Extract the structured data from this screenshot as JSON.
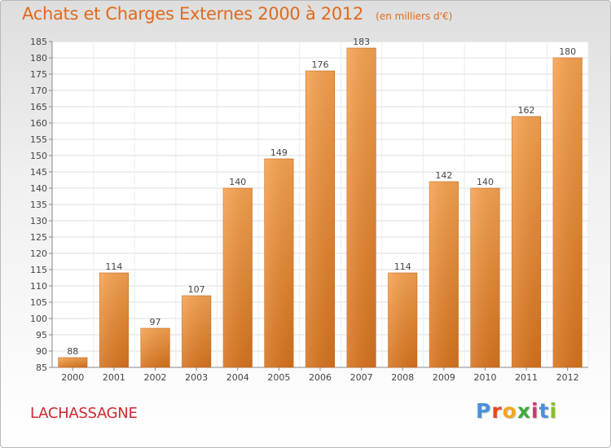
{
  "title": "Achats et Charges Externes 2000 à 2012",
  "subtitle": "(en milliers d'€)",
  "commune": "LACHASSAGNE",
  "logo": {
    "letters": [
      "P",
      "r",
      "o",
      "x",
      "i",
      "t",
      "i"
    ],
    "colors": [
      "#4a90d9",
      "#e8472a",
      "#f2a61c",
      "#3daa3d",
      "#d9306e",
      "#4a90d9",
      "#8bbf2a"
    ]
  },
  "chart_data": {
    "type": "bar",
    "categories": [
      "2000",
      "2001",
      "2002",
      "2003",
      "2004",
      "2005",
      "2006",
      "2007",
      "2008",
      "2009",
      "2010",
      "2011",
      "2012"
    ],
    "values": [
      88,
      114,
      97,
      107,
      140,
      149,
      176,
      183,
      114,
      142,
      140,
      162,
      180
    ],
    "data_labels": [
      "88",
      "114",
      "97",
      "107",
      "140",
      "149",
      "176",
      "183",
      "114",
      "142",
      "140",
      "162",
      "180"
    ],
    "y_ticks": [
      "85",
      "90",
      "95",
      "100",
      "105",
      "110",
      "115",
      "120",
      "125",
      "130",
      "135",
      "140",
      "145",
      "150",
      "155",
      "160",
      "165",
      "170",
      "175",
      "180",
      "185"
    ],
    "ylim": [
      85,
      185
    ],
    "grid": true,
    "bar_color": "#e9892f"
  }
}
